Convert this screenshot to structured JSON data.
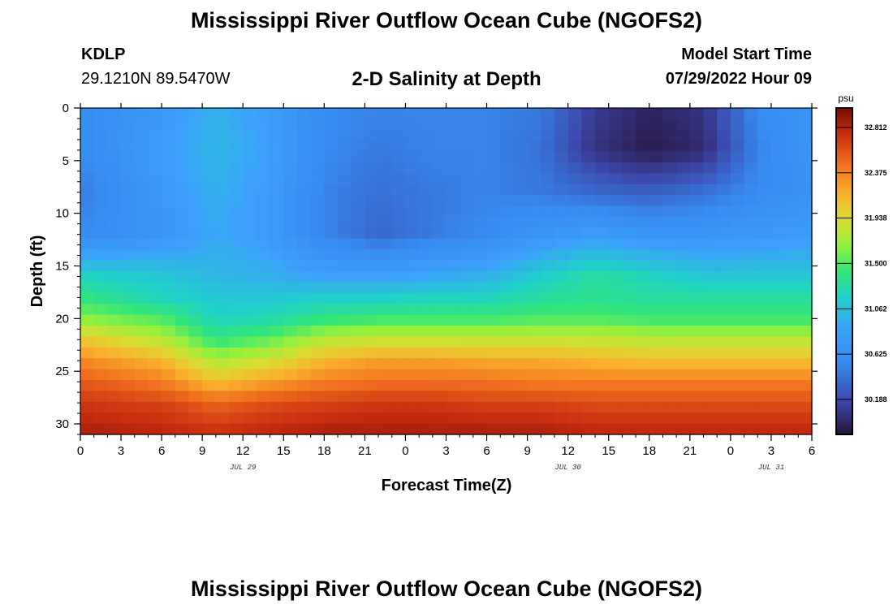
{
  "page": {
    "title": "Mississippi River Outflow Ocean Cube (NGOFS2)",
    "station": "KDLP",
    "coords": "29.1210N  89.5470W",
    "subtitle": "2-D Salinity at Depth",
    "model_start_label": "Model Start Time",
    "model_start_time": "07/29/2022 Hour 09",
    "title_repeat": "Mississippi River Outflow Ocean Cube (NGOFS2)"
  },
  "chart_data": {
    "type": "heatmap",
    "xlabel": "Forecast Time(Z)",
    "ylabel": "Depth (ft)",
    "x_hours_range": [
      0,
      54
    ],
    "ylim": [
      0,
      31
    ],
    "y_inverted": true,
    "x_tick_labels": [
      "0",
      "3",
      "6",
      "9",
      "12",
      "15",
      "18",
      "21",
      "0",
      "3",
      "6",
      "9",
      "12",
      "15",
      "18",
      "21",
      "0",
      "3",
      "6"
    ],
    "y_tick_labels": [
      "0",
      "5",
      "10",
      "15",
      "20",
      "25",
      "30"
    ],
    "y_tick_values": [
      0,
      5,
      10,
      15,
      20,
      25,
      30
    ],
    "date_labels": [
      {
        "label": "JUL 29",
        "hour": 12
      },
      {
        "label": "JUL 30",
        "hour": 36
      },
      {
        "label": "JUL 31",
        "hour": 51
      }
    ],
    "colorbar": {
      "unit": "psu",
      "min": 29.85,
      "max": 33.0,
      "tick_labels": [
        "32.812",
        "32.375",
        "31.938",
        "31.500",
        "31.062",
        "30.625",
        "30.188"
      ],
      "tick_values": [
        32.812,
        32.375,
        31.938,
        31.5,
        31.062,
        30.625,
        30.188
      ]
    },
    "times_hours": [
      0,
      6,
      10,
      14,
      18,
      22,
      26,
      30,
      34,
      38,
      42,
      46,
      50,
      54
    ],
    "depths_ft": [
      0,
      4,
      8,
      12,
      16,
      18,
      20,
      22,
      24,
      26,
      28,
      31
    ],
    "salinity_grid": [
      [
        30.55,
        30.75,
        30.95,
        30.8,
        30.55,
        30.5,
        30.5,
        30.5,
        30.45,
        30.1,
        29.95,
        30.05,
        30.55,
        30.7
      ],
      [
        30.55,
        30.8,
        31.0,
        30.85,
        30.55,
        30.45,
        30.5,
        30.5,
        30.4,
        30.05,
        29.9,
        30.0,
        30.5,
        30.7
      ],
      [
        30.45,
        30.75,
        30.95,
        30.8,
        30.5,
        30.4,
        30.45,
        30.5,
        30.45,
        30.35,
        30.3,
        30.4,
        30.55,
        30.65
      ],
      [
        30.55,
        30.7,
        30.9,
        30.8,
        30.5,
        30.35,
        30.45,
        30.55,
        30.7,
        30.8,
        30.7,
        30.7,
        30.75,
        30.8
      ],
      [
        31.2,
        31.1,
        31.0,
        30.95,
        30.85,
        30.85,
        30.9,
        30.95,
        31.15,
        31.3,
        31.2,
        31.1,
        31.1,
        31.1
      ],
      [
        31.4,
        31.2,
        31.1,
        31.1,
        31.15,
        31.15,
        31.2,
        31.2,
        31.3,
        31.35,
        31.3,
        31.3,
        31.3,
        31.3
      ],
      [
        31.65,
        31.5,
        31.2,
        31.25,
        31.4,
        31.45,
        31.45,
        31.45,
        31.5,
        31.5,
        31.45,
        31.45,
        31.45,
        31.45
      ],
      [
        32.05,
        31.8,
        31.4,
        31.55,
        31.8,
        31.85,
        31.85,
        31.85,
        31.85,
        31.85,
        31.8,
        31.8,
        31.8,
        31.8
      ],
      [
        32.35,
        32.15,
        31.75,
        31.9,
        32.15,
        32.25,
        32.25,
        32.2,
        32.2,
        32.15,
        32.1,
        32.1,
        32.1,
        32.1
      ],
      [
        32.55,
        32.4,
        32.1,
        32.25,
        32.4,
        32.45,
        32.45,
        32.45,
        32.4,
        32.4,
        32.4,
        32.4,
        32.4,
        32.4
      ],
      [
        32.7,
        32.65,
        32.5,
        32.6,
        32.65,
        32.7,
        32.7,
        32.65,
        32.65,
        32.6,
        32.6,
        32.6,
        32.6,
        32.6
      ],
      [
        32.85,
        32.8,
        32.75,
        32.8,
        32.85,
        32.85,
        32.85,
        32.85,
        32.85,
        32.8,
        32.8,
        32.8,
        32.8,
        32.8
      ]
    ]
  }
}
